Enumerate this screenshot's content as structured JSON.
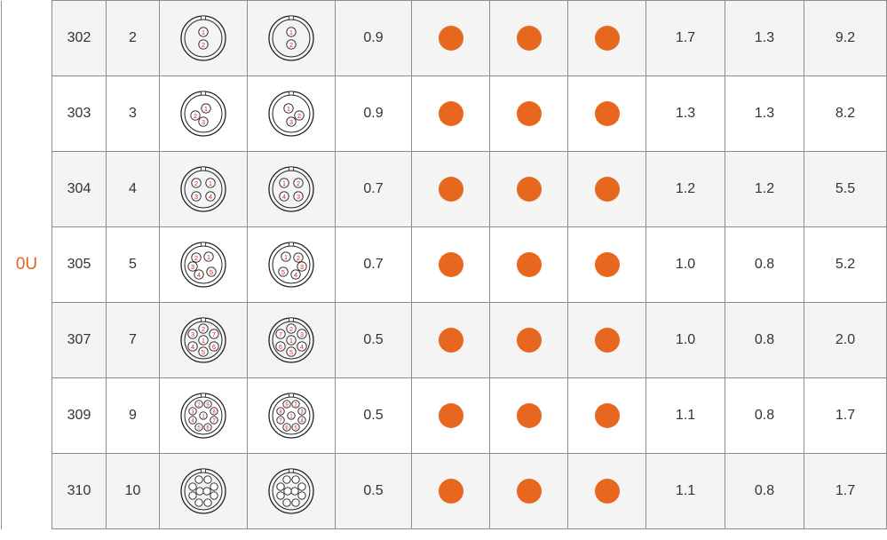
{
  "series_label": "0U",
  "dot_color": "#e8671f",
  "rows": [
    {
      "code": "302",
      "contacts": "2",
      "v1": "0.9",
      "v2": "1.7",
      "v3": "1.3",
      "v4": "9.2",
      "layout": [
        {
          "x": 0,
          "y": -7,
          "t": "1"
        },
        {
          "x": 0,
          "y": 7,
          "t": "2"
        }
      ],
      "dots": [
        "full",
        "full",
        "full"
      ]
    },
    {
      "code": "303",
      "contacts": "3",
      "v1": "0.9",
      "v2": "1.3",
      "v3": "1.3",
      "v4": "8.2",
      "layout": [
        {
          "x": 3,
          "y": -6,
          "t": "1"
        },
        {
          "x": -9,
          "y": 2,
          "t": "2"
        },
        {
          "x": 0,
          "y": 9,
          "t": "3"
        }
      ],
      "dots": [
        "full",
        "full",
        "full"
      ]
    },
    {
      "code": "304",
      "contacts": "4",
      "v1": "0.7",
      "v2": "1.2",
      "v3": "1.2",
      "v4": "5.5",
      "layout": [
        {
          "x": 8,
          "y": -7,
          "t": "1"
        },
        {
          "x": -8,
          "y": -7,
          "t": "2"
        },
        {
          "x": -8,
          "y": 8,
          "t": "3"
        },
        {
          "x": 8,
          "y": 8,
          "t": "4"
        }
      ],
      "dots": [
        "full",
        "full",
        "full"
      ]
    },
    {
      "code": "305",
      "contacts": "5",
      "v1": "0.7",
      "v2": "1.0",
      "v3": "0.8",
      "v4": "5.2",
      "layout": [
        {
          "x": 6,
          "y": -9,
          "t": "1"
        },
        {
          "x": -8,
          "y": -8,
          "t": "2"
        },
        {
          "x": -12,
          "y": 2,
          "t": "3"
        },
        {
          "x": -5,
          "y": 11,
          "t": "4"
        },
        {
          "x": 9,
          "y": 8,
          "t": "5"
        }
      ],
      "dots": [
        "full",
        "full",
        "full"
      ]
    },
    {
      "code": "307",
      "contacts": "7",
      "v1": "0.5",
      "v2": "1.0",
      "v3": "0.8",
      "v4": "2.0",
      "layout": [
        {
          "x": 0,
          "y": 0,
          "t": "1"
        },
        {
          "x": 0,
          "y": -13,
          "t": "2"
        },
        {
          "x": -12,
          "y": -7,
          "t": "3"
        },
        {
          "x": -12,
          "y": 7,
          "t": "4"
        },
        {
          "x": 0,
          "y": 13,
          "t": "5"
        },
        {
          "x": 12,
          "y": 7,
          "t": "6"
        },
        {
          "x": 12,
          "y": -7,
          "t": "7"
        }
      ],
      "dots": [
        "full",
        "full",
        "full"
      ]
    },
    {
      "code": "309",
      "contacts": "9",
      "v1": "0.5",
      "v2": "1.1",
      "v3": "0.8",
      "v4": "1.7",
      "layout": [
        {
          "x": 0,
          "y": 0,
          "t": "1"
        },
        {
          "x": -5,
          "y": -13,
          "t": "2"
        },
        {
          "x": -12,
          "y": -5,
          "t": "3"
        },
        {
          "x": -12,
          "y": 5,
          "t": "4"
        },
        {
          "x": -5,
          "y": 13,
          "t": "5"
        },
        {
          "x": 5,
          "y": 13,
          "t": "6"
        },
        {
          "x": 12,
          "y": 5,
          "t": "7"
        },
        {
          "x": 12,
          "y": -5,
          "t": "8"
        },
        {
          "x": 5,
          "y": -13,
          "t": "9"
        }
      ],
      "dots": [
        "full",
        "full",
        "full"
      ]
    },
    {
      "code": "310",
      "contacts": "10",
      "v1": "0.5",
      "v2": "1.1",
      "v3": "0.8",
      "v4": "1.7",
      "layout": [
        {
          "x": -5,
          "y": -13,
          "t": ""
        },
        {
          "x": 5,
          "y": -13,
          "t": ""
        },
        {
          "x": -12,
          "y": -5,
          "t": ""
        },
        {
          "x": 12,
          "y": -5,
          "t": ""
        },
        {
          "x": -12,
          "y": 5,
          "t": ""
        },
        {
          "x": 12,
          "y": 5,
          "t": ""
        },
        {
          "x": -5,
          "y": 13,
          "t": ""
        },
        {
          "x": 5,
          "y": 13,
          "t": ""
        },
        {
          "x": -4,
          "y": 0,
          "t": ""
        },
        {
          "x": 4,
          "y": 0,
          "t": ""
        }
      ],
      "dots": [
        "full",
        "full",
        "full"
      ]
    }
  ]
}
